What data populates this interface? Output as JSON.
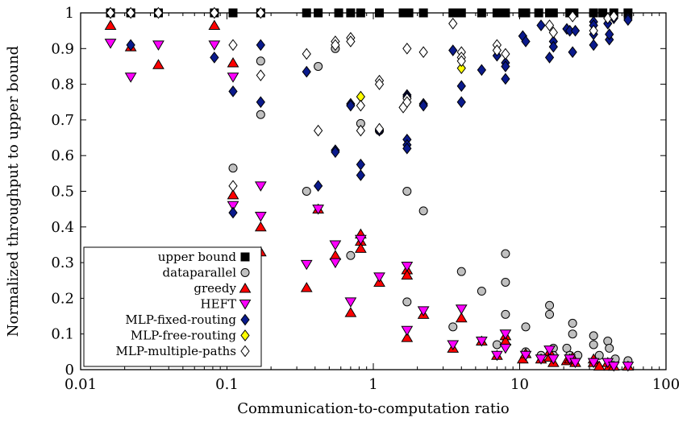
{
  "chart_data": {
    "type": "scatter",
    "xlabel": "Communication-to-computation ratio",
    "ylabel": "Normalized throughput to upper bound",
    "xscale": "log",
    "xlim": [
      0.01,
      100
    ],
    "ylim": [
      0,
      1
    ],
    "x_ticks": [
      "0.01",
      "0.1",
      "1",
      "10",
      "100"
    ],
    "y_ticks": [
      "0",
      "0.1",
      "0.2",
      "0.3",
      "0.4",
      "0.5",
      "0.6",
      "0.7",
      "0.8",
      "0.9",
      "1"
    ],
    "legend_position": "bottom-left",
    "series": [
      {
        "name": "upper bound",
        "marker": "square",
        "color": "#000000",
        "points": [
          [
            0.016,
            1
          ],
          [
            0.022,
            1
          ],
          [
            0.034,
            1
          ],
          [
            0.082,
            1
          ],
          [
            0.11,
            1
          ],
          [
            0.17,
            1
          ],
          [
            0.35,
            1
          ],
          [
            0.42,
            1
          ],
          [
            0.58,
            1
          ],
          [
            0.7,
            1
          ],
          [
            0.82,
            1
          ],
          [
            1.1,
            1
          ],
          [
            1.6,
            1
          ],
          [
            1.75,
            1
          ],
          [
            2.2,
            1
          ],
          [
            3.5,
            1
          ],
          [
            4,
            1
          ],
          [
            5.5,
            1
          ],
          [
            7,
            1
          ],
          [
            8,
            1
          ],
          [
            10.5,
            1
          ],
          [
            11,
            1
          ],
          [
            13.5,
            1
          ],
          [
            16,
            1
          ],
          [
            17,
            1
          ],
          [
            22,
            1
          ],
          [
            23.5,
            1
          ],
          [
            32,
            1
          ],
          [
            37,
            1
          ],
          [
            44,
            1
          ],
          [
            55,
            1
          ]
        ]
      },
      {
        "name": "dataparallel",
        "marker": "circle",
        "color": "#c0c0c0",
        "points": [
          [
            0.016,
            1
          ],
          [
            0.022,
            1
          ],
          [
            0.034,
            1
          ],
          [
            0.082,
            1
          ],
          [
            0.11,
            0.565
          ],
          [
            0.17,
            0.865
          ],
          [
            0.17,
            0.715
          ],
          [
            0.35,
            0.5
          ],
          [
            0.42,
            0.85
          ],
          [
            0.55,
            0.9
          ],
          [
            0.7,
            0.32
          ],
          [
            0.82,
            0.69
          ],
          [
            1.1,
            0.67
          ],
          [
            1.7,
            0.5
          ],
          [
            1.7,
            0.19
          ],
          [
            2.2,
            0.445
          ],
          [
            3.5,
            0.12
          ],
          [
            4,
            0.275
          ],
          [
            5.5,
            0.22
          ],
          [
            7,
            0.07
          ],
          [
            8,
            0.325
          ],
          [
            8,
            0.245
          ],
          [
            8,
            0.155
          ],
          [
            11,
            0.12
          ],
          [
            11,
            0.05
          ],
          [
            14,
            0.04
          ],
          [
            16,
            0.18
          ],
          [
            16,
            0.155
          ],
          [
            17,
            0.06
          ],
          [
            17,
            0.04
          ],
          [
            21,
            0.06
          ],
          [
            22,
            0.04
          ],
          [
            23,
            0.13
          ],
          [
            23,
            0.1
          ],
          [
            25,
            0.04
          ],
          [
            32,
            0.095
          ],
          [
            32,
            0.07
          ],
          [
            35,
            0.04
          ],
          [
            40,
            0.08
          ],
          [
            41,
            0.06
          ],
          [
            45,
            0.03
          ],
          [
            55,
            0.025
          ]
        ]
      },
      {
        "name": "greedy",
        "marker": "triangle-up",
        "color": "#ff0000",
        "points": [
          [
            0.016,
            0.965
          ],
          [
            0.022,
            0.905
          ],
          [
            0.034,
            0.855
          ],
          [
            0.082,
            0.965
          ],
          [
            0.11,
            0.86
          ],
          [
            0.11,
            0.49
          ],
          [
            0.17,
            0.4
          ],
          [
            0.17,
            0.33
          ],
          [
            0.35,
            0.23
          ],
          [
            0.42,
            0.45
          ],
          [
            0.55,
            0.32
          ],
          [
            0.7,
            0.16
          ],
          [
            0.82,
            0.38
          ],
          [
            0.82,
            0.36
          ],
          [
            0.82,
            0.34
          ],
          [
            1.1,
            0.245
          ],
          [
            1.7,
            0.28
          ],
          [
            1.7,
            0.265
          ],
          [
            1.7,
            0.09
          ],
          [
            2.2,
            0.155
          ],
          [
            3.5,
            0.06
          ],
          [
            4,
            0.145
          ],
          [
            5.5,
            0.08
          ],
          [
            7,
            0.04
          ],
          [
            8,
            0.095
          ],
          [
            8,
            0.08
          ],
          [
            10.5,
            0.03
          ],
          [
            11,
            0.045
          ],
          [
            14,
            0.03
          ],
          [
            16,
            0.05
          ],
          [
            16,
            0.035
          ],
          [
            17,
            0.02
          ],
          [
            21,
            0.025
          ],
          [
            22,
            0.03
          ],
          [
            23,
            0.035
          ],
          [
            24,
            0.02
          ],
          [
            32,
            0.02
          ],
          [
            32,
            0.03
          ],
          [
            35,
            0.01
          ],
          [
            40,
            0.02
          ],
          [
            41,
            0.01
          ],
          [
            44,
            0.01
          ],
          [
            55,
            0.01
          ]
        ]
      },
      {
        "name": "HEFT",
        "marker": "triangle-down",
        "color": "#ff00ff",
        "points": [
          [
            0.016,
            0.915
          ],
          [
            0.022,
            0.82
          ],
          [
            0.034,
            0.91
          ],
          [
            0.082,
            0.91
          ],
          [
            0.11,
            0.82
          ],
          [
            0.11,
            0.46
          ],
          [
            0.17,
            0.515
          ],
          [
            0.17,
            0.43
          ],
          [
            0.35,
            0.295
          ],
          [
            0.42,
            0.45
          ],
          [
            0.55,
            0.35
          ],
          [
            0.55,
            0.3
          ],
          [
            0.7,
            0.19
          ],
          [
            0.82,
            0.365
          ],
          [
            1.1,
            0.26
          ],
          [
            1.7,
            0.29
          ],
          [
            1.7,
            0.11
          ],
          [
            2.2,
            0.165
          ],
          [
            3.5,
            0.07
          ],
          [
            4,
            0.17
          ],
          [
            5.5,
            0.08
          ],
          [
            7,
            0.04
          ],
          [
            8,
            0.1
          ],
          [
            8,
            0.06
          ],
          [
            11,
            0.04
          ],
          [
            14,
            0.03
          ],
          [
            16,
            0.055
          ],
          [
            17,
            0.03
          ],
          [
            22,
            0.03
          ],
          [
            24,
            0.02
          ],
          [
            32,
            0.02
          ],
          [
            40,
            0.02
          ],
          [
            44,
            0.01
          ],
          [
            55,
            0.01
          ]
        ]
      },
      {
        "name": "MLP-fixed-routing",
        "marker": "diamond",
        "color": "#0a1a8c",
        "points": [
          [
            0.016,
            1
          ],
          [
            0.022,
            0.91
          ],
          [
            0.082,
            0.875
          ],
          [
            0.11,
            0.78
          ],
          [
            0.11,
            0.44
          ],
          [
            0.17,
            0.91
          ],
          [
            0.17,
            0.75
          ],
          [
            0.35,
            0.835
          ],
          [
            0.42,
            0.515
          ],
          [
            0.55,
            0.615
          ],
          [
            0.55,
            0.61
          ],
          [
            0.7,
            0.745
          ],
          [
            0.7,
            0.74
          ],
          [
            0.82,
            0.575
          ],
          [
            0.82,
            0.545
          ],
          [
            1.1,
            0.67
          ],
          [
            1.7,
            0.77
          ],
          [
            1.7,
            0.765
          ],
          [
            1.7,
            0.645
          ],
          [
            1.7,
            0.63
          ],
          [
            1.7,
            0.62
          ],
          [
            2.2,
            0.745
          ],
          [
            2.2,
            0.74
          ],
          [
            3.5,
            0.895
          ],
          [
            4,
            0.795
          ],
          [
            4,
            0.75
          ],
          [
            5.5,
            0.84
          ],
          [
            7,
            0.88
          ],
          [
            8,
            0.86
          ],
          [
            8,
            0.85
          ],
          [
            8,
            0.815
          ],
          [
            10.5,
            0.935
          ],
          [
            11,
            0.92
          ],
          [
            14,
            0.965
          ],
          [
            16,
            0.875
          ],
          [
            17,
            0.92
          ],
          [
            17,
            0.905
          ],
          [
            21,
            0.955
          ],
          [
            22,
            0.95
          ],
          [
            23,
            0.89
          ],
          [
            24,
            0.95
          ],
          [
            32,
            0.975
          ],
          [
            32,
            0.965
          ],
          [
            32,
            0.91
          ],
          [
            32,
            0.94
          ],
          [
            40,
            0.97
          ],
          [
            41,
            0.925
          ],
          [
            41,
            0.94
          ],
          [
            44,
            0.985
          ],
          [
            55,
            0.985
          ],
          [
            55,
            0.98
          ]
        ]
      },
      {
        "name": "MLP-free-routing",
        "marker": "diamond",
        "color": "#ffff00",
        "points": [
          [
            0.82,
            0.765
          ],
          [
            4,
            0.845
          ]
        ]
      },
      {
        "name": "MLP-multiple-paths",
        "marker": "diamond",
        "color": "#ffffff",
        "points": [
          [
            0.016,
            1
          ],
          [
            0.022,
            1
          ],
          [
            0.034,
            1
          ],
          [
            0.082,
            1
          ],
          [
            0.11,
            0.91
          ],
          [
            0.11,
            0.515
          ],
          [
            0.17,
            1
          ],
          [
            0.17,
            0.825
          ],
          [
            0.35,
            0.885
          ],
          [
            0.42,
            0.67
          ],
          [
            0.55,
            0.92
          ],
          [
            0.55,
            0.91
          ],
          [
            0.7,
            0.93
          ],
          [
            0.7,
            0.92
          ],
          [
            0.82,
            0.74
          ],
          [
            0.82,
            0.67
          ],
          [
            1.1,
            0.81
          ],
          [
            1.1,
            0.8
          ],
          [
            1.1,
            0.675
          ],
          [
            1.6,
            0.735
          ],
          [
            1.7,
            0.9
          ],
          [
            1.7,
            0.76
          ],
          [
            1.7,
            0.75
          ],
          [
            2.2,
            0.89
          ],
          [
            3.5,
            0.97
          ],
          [
            4,
            0.89
          ],
          [
            4,
            0.875
          ],
          [
            4,
            0.865
          ],
          [
            7,
            0.91
          ],
          [
            7,
            0.895
          ],
          [
            8,
            0.885
          ],
          [
            16,
            0.965
          ],
          [
            17,
            0.945
          ],
          [
            23,
            0.99
          ],
          [
            32,
            0.95
          ],
          [
            40,
            0.985
          ],
          [
            44,
            0.99
          ]
        ]
      }
    ]
  }
}
